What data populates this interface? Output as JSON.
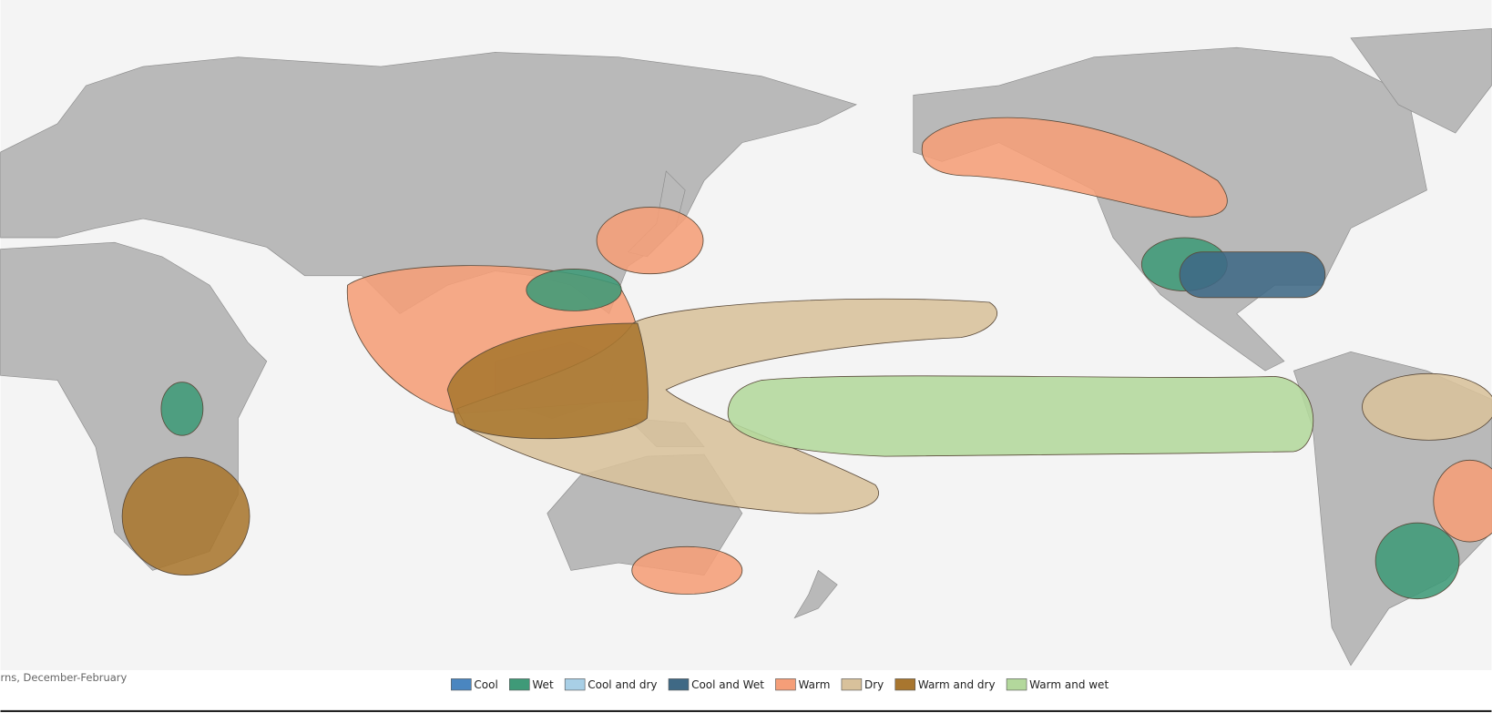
{
  "caption": "rns, December-February",
  "legend": [
    {
      "name": "Cool",
      "color": "#4a86c0"
    },
    {
      "name": "Wet",
      "color": "#3f9a78"
    },
    {
      "name": "Cool and dry",
      "color": "#a8cfe6"
    },
    {
      "name": "Cool and Wet",
      "color": "#3f6985"
    },
    {
      "name": "Warm",
      "color": "#f59e78"
    },
    {
      "name": "Dry",
      "color": "#d8c19b"
    },
    {
      "name": "Warm and dry",
      "color": "#a8762f"
    },
    {
      "name": "Warm and wet",
      "color": "#b3d89c"
    }
  ]
}
